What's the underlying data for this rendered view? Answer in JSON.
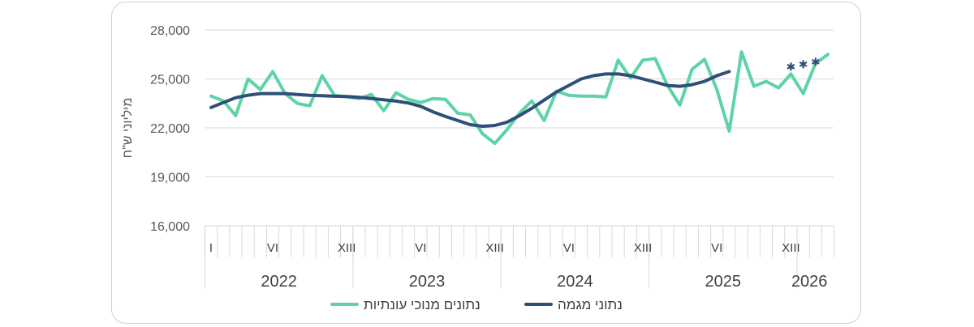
{
  "chart_data": {
    "type": "line",
    "ylabel": "מיליוני ש\"ח",
    "ylim": [
      16000,
      28000
    ],
    "y_ticks": [
      "16,000",
      "19,000",
      "22,000",
      "25,000",
      "28,000"
    ],
    "y_tick_values": [
      16000,
      19000,
      22000,
      25000,
      28000
    ],
    "grid": true,
    "month_labels": [
      {
        "index": 0,
        "label": "I"
      },
      {
        "index": 5,
        "label": "VI"
      },
      {
        "index": 11,
        "label": "XIII"
      },
      {
        "index": 17,
        "label": "VI"
      },
      {
        "index": 23,
        "label": "XIII"
      },
      {
        "index": 29,
        "label": "VI"
      },
      {
        "index": 35,
        "label": "XIII"
      },
      {
        "index": 41,
        "label": "VI"
      },
      {
        "index": 47,
        "label": "XIII"
      }
    ],
    "years": [
      {
        "label": "2022",
        "start": 0,
        "end": 12
      },
      {
        "label": "2023",
        "start": 12,
        "end": 24
      },
      {
        "label": "2024",
        "start": 24,
        "end": 36
      },
      {
        "label": "2025",
        "start": 36,
        "end": 48
      },
      {
        "label": "2026",
        "start": 48,
        "end": 50
      }
    ],
    "series": [
      {
        "name": "נתונים מנוכי עונתיות",
        "color": "#5fd3a8",
        "values": [
          23950,
          23650,
          22750,
          25000,
          24350,
          25450,
          24100,
          23500,
          23350,
          25200,
          24000,
          23900,
          23800,
          24050,
          23050,
          24150,
          23750,
          23550,
          23800,
          23750,
          22900,
          22800,
          21650,
          21050,
          21900,
          22900,
          23650,
          22450,
          24250,
          24000,
          23950,
          23950,
          23900,
          26150,
          25050,
          26150,
          26250,
          24600,
          23400,
          25600,
          26200,
          24350,
          21800,
          26650,
          24550,
          24850,
          24450,
          25300,
          24100,
          25950,
          26500
        ]
      },
      {
        "name": "נתוני מגמה",
        "color": "#2e4f78",
        "values": [
          23250,
          23550,
          23850,
          24000,
          24100,
          24100,
          24100,
          24050,
          24000,
          23970,
          23940,
          23920,
          23870,
          23800,
          23720,
          23640,
          23520,
          23320,
          22980,
          22700,
          22450,
          22200,
          22100,
          22150,
          22350,
          22750,
          23200,
          23700,
          24200,
          24600,
          25000,
          25200,
          25300,
          25300,
          25200,
          25000,
          24800,
          24600,
          24550,
          24650,
          24850,
          25200,
          25450
        ],
        "forecast": {
          "start_index": 47,
          "values": [
            25750,
            25900,
            26050
          ],
          "marker": "asterisk"
        }
      }
    ],
    "legend_position": "bottom"
  }
}
